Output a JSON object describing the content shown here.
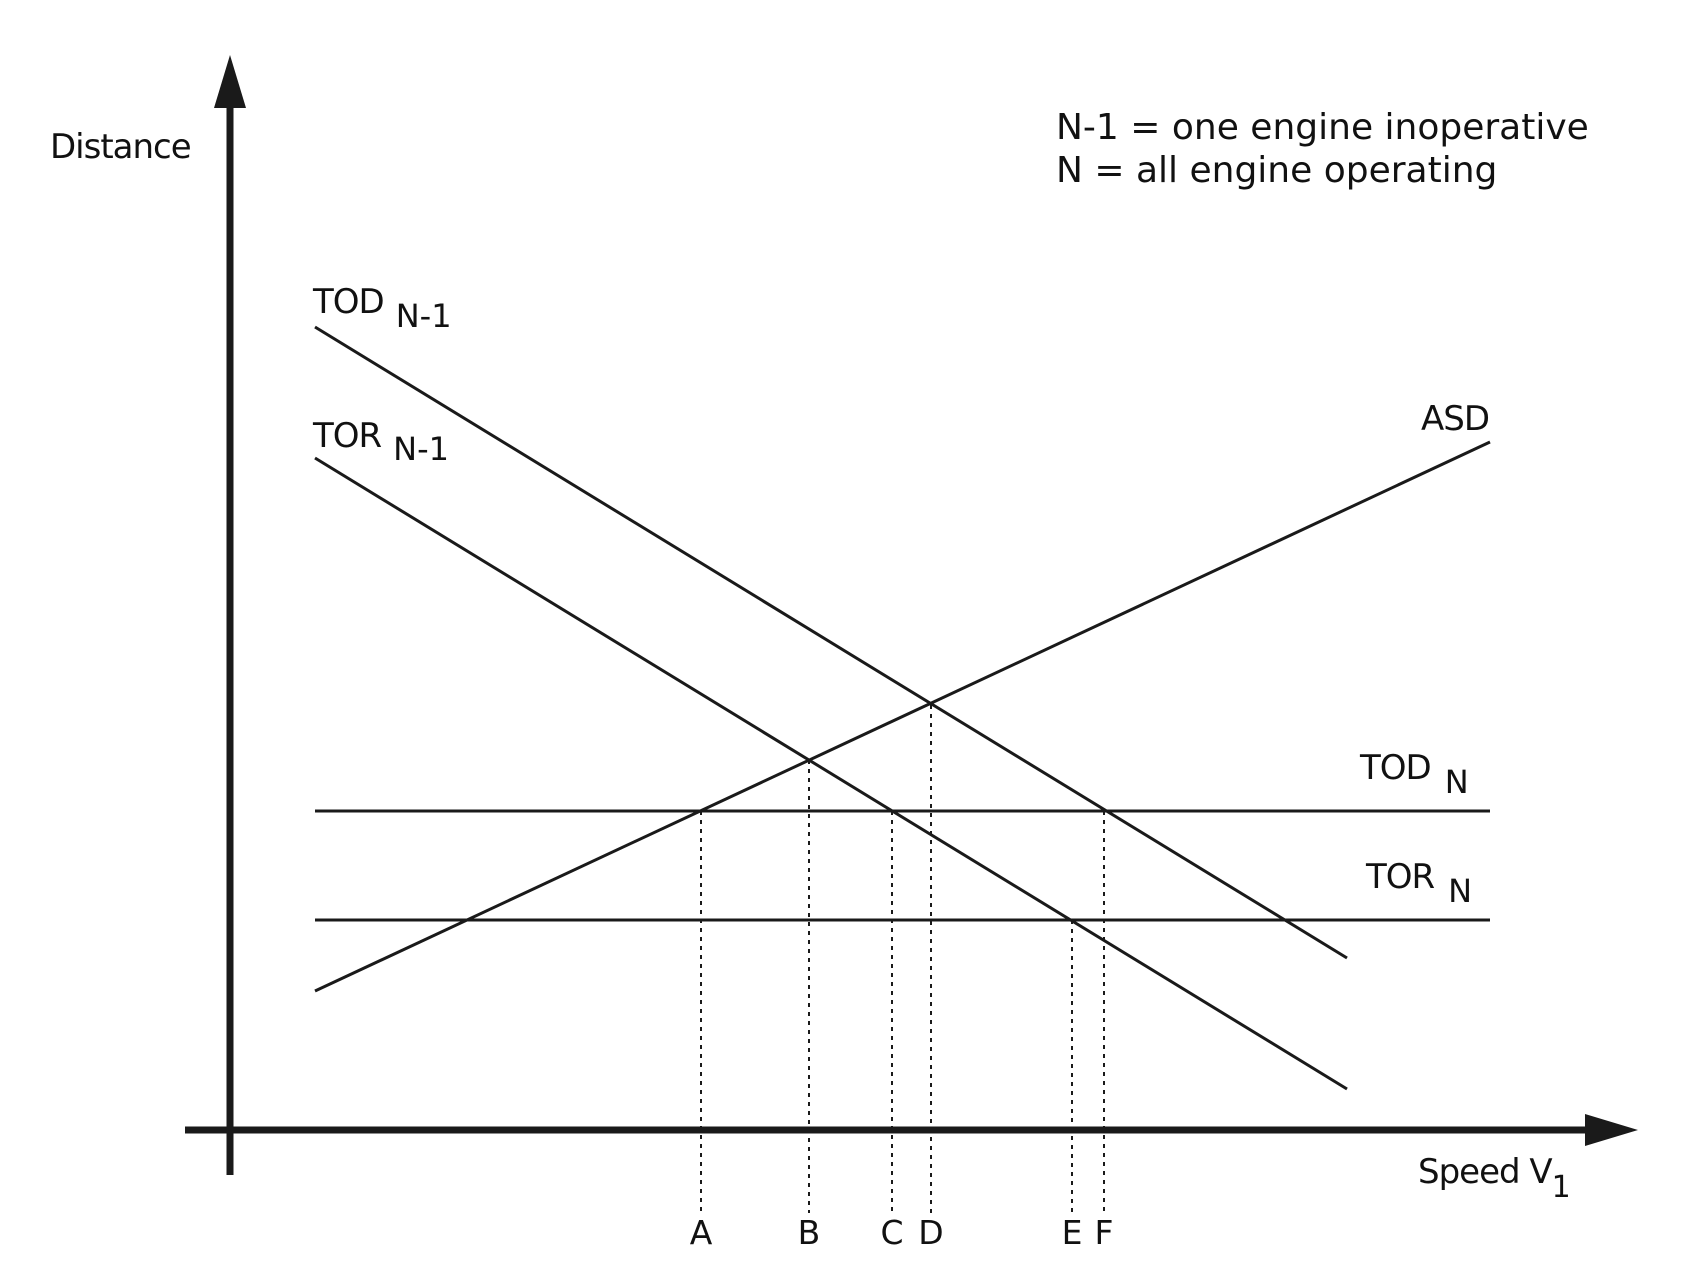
{
  "axes": {
    "y_label": "Distance",
    "x_label_main": "Speed V",
    "x_label_sub": "1"
  },
  "legend": {
    "line1": "N-1 = one engine inoperative",
    "line2": "N = all engine operating"
  },
  "curves": {
    "tod_n1": {
      "main": "TOD",
      "sub": "N-1"
    },
    "tor_n1": {
      "main": "TOR",
      "sub": "N-1"
    },
    "asd": {
      "main": "ASD"
    },
    "tod_n": {
      "main": "TOD",
      "sub": "N"
    },
    "tor_n": {
      "main": "TOR",
      "sub": "N"
    }
  },
  "points": [
    "A",
    "B",
    "C",
    "D",
    "E",
    "F"
  ]
}
